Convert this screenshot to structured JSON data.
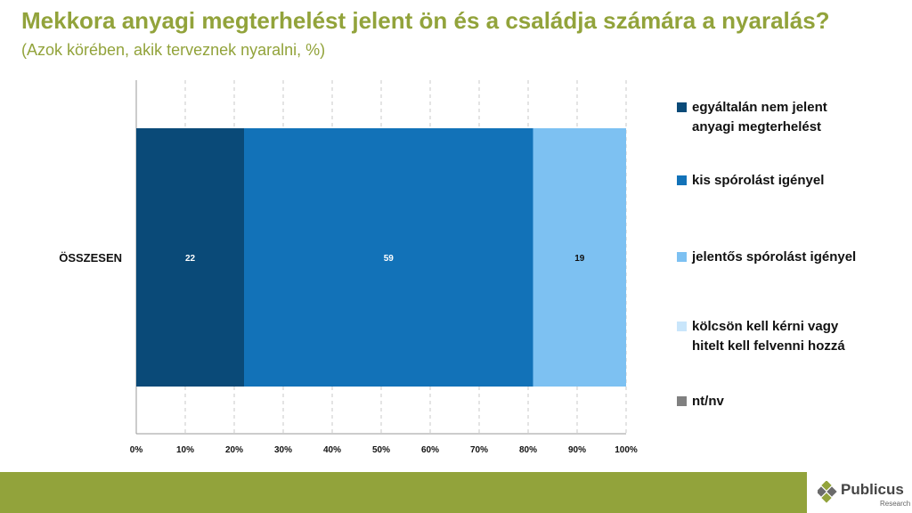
{
  "header": {
    "title": "Mekkora anyagi megterhelést jelent ön és a családja számára a nyaralás?",
    "subtitle": "(Azok körében, akik terveznek nyaralni, %)"
  },
  "chart_data": {
    "type": "bar",
    "orientation": "horizontal",
    "stacked": true,
    "categories": [
      "ÖSSZESEN"
    ],
    "series": [
      {
        "name": "egyáltalán nem jelent anyagi megterhelést",
        "values": [
          22
        ],
        "color": "#0a4a78"
      },
      {
        "name": "kis spórolást igényel",
        "values": [
          59
        ],
        "color": "#1272b8"
      },
      {
        "name": "jelentős spórolást igényel",
        "values": [
          19
        ],
        "color": "#7dc1f2"
      },
      {
        "name": "kölcsön kell kérni vagy hitelt kell felvenni hozzá",
        "values": [
          0
        ],
        "color": "#c9e6fb"
      },
      {
        "name": "nt/nv",
        "values": [
          0
        ],
        "color": "#808080"
      }
    ],
    "xlim": [
      0,
      100
    ],
    "xticks": [
      "0%",
      "10%",
      "20%",
      "30%",
      "40%",
      "50%",
      "60%",
      "70%",
      "80%",
      "90%",
      "100%"
    ],
    "grid": "vertical dashed",
    "legend_position": "right"
  },
  "legend": {
    "items": [
      {
        "line1": "egyáltalán nem jelent",
        "line2": "anyagi megterhelést"
      },
      {
        "line1": "kis spórolást igényel",
        "line2": ""
      },
      {
        "line1": "jelentős spórolást igényel",
        "line2": ""
      },
      {
        "line1": "kölcsön kell kérni vagy",
        "line2": "hitelt kell felvenni hozzá"
      },
      {
        "line1": "nt/nv",
        "line2": ""
      }
    ]
  },
  "logo": {
    "name": "Publicus",
    "sub": "Research"
  }
}
